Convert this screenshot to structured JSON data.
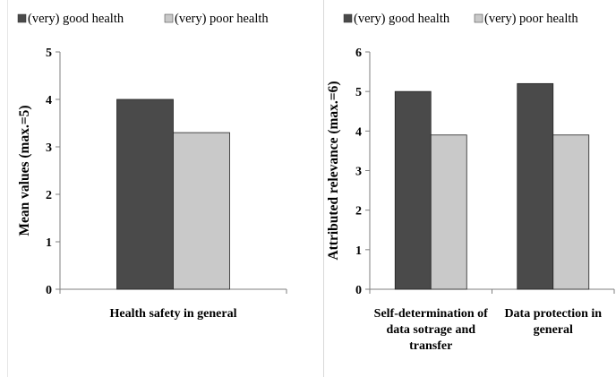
{
  "chart_data": [
    {
      "type": "bar",
      "categories": [
        "Health safety in general"
      ],
      "series": [
        {
          "name": "(very) good health",
          "values": [
            4.0
          ]
        },
        {
          "name": "(very) poor health",
          "values": [
            3.3
          ]
        }
      ],
      "ylabel": "Mean values (max.=5)",
      "xlabel": "",
      "ylim": [
        0,
        5
      ],
      "yticks": [
        0,
        1,
        2,
        3,
        4,
        5
      ],
      "legend": "top",
      "grid": false
    },
    {
      "type": "bar",
      "categories": [
        "Self-determination of data sotrage and transfer",
        "Data protection in general"
      ],
      "series": [
        {
          "name": "(very) good health",
          "values": [
            5.0,
            5.2
          ]
        },
        {
          "name": "(very) poor health",
          "values": [
            3.9,
            3.9
          ]
        }
      ],
      "ylabel": "Attributed relevance (max.=6)",
      "xlabel": "",
      "ylim": [
        0,
        6
      ],
      "yticks": [
        0,
        1,
        2,
        3,
        4,
        5,
        6
      ],
      "legend": "top",
      "grid": false
    }
  ],
  "colors": {
    "good_health": "#4a4a4a",
    "poor_health": "#c9c9c9",
    "axis": "#7f7f7f"
  }
}
